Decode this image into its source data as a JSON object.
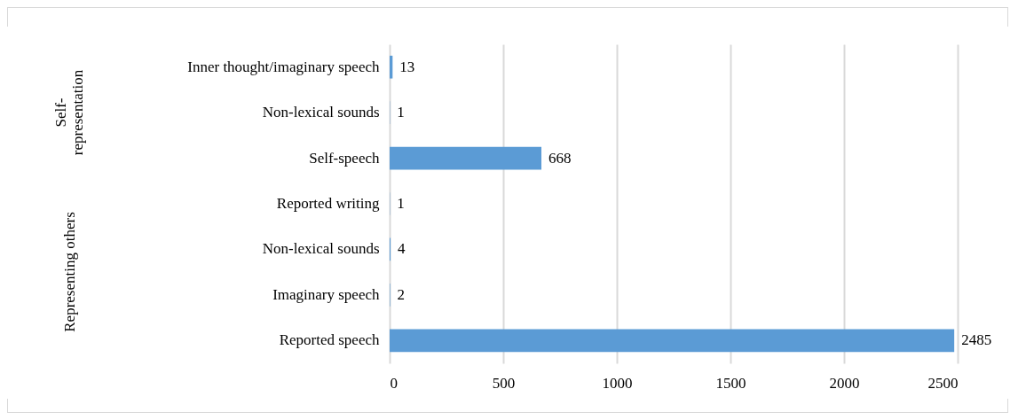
{
  "chart_data": {
    "type": "bar",
    "orientation": "horizontal",
    "categories": [
      "Inner thought/imaginary speech",
      "Non-lexical sounds",
      "Self-speech",
      "Reported writing",
      "Non-lexical sounds",
      "Imaginary speech",
      "Reported speech"
    ],
    "values": [
      13,
      1,
      668,
      1,
      4,
      2,
      2485
    ],
    "color": "#5b9bd5",
    "xlim": [
      0,
      2500
    ],
    "xticks": [
      0,
      500,
      1000,
      1500,
      2000,
      2500
    ],
    "grid": "x",
    "data_labels": true,
    "annotations": [
      "Self-representation",
      "Representing others"
    ]
  }
}
